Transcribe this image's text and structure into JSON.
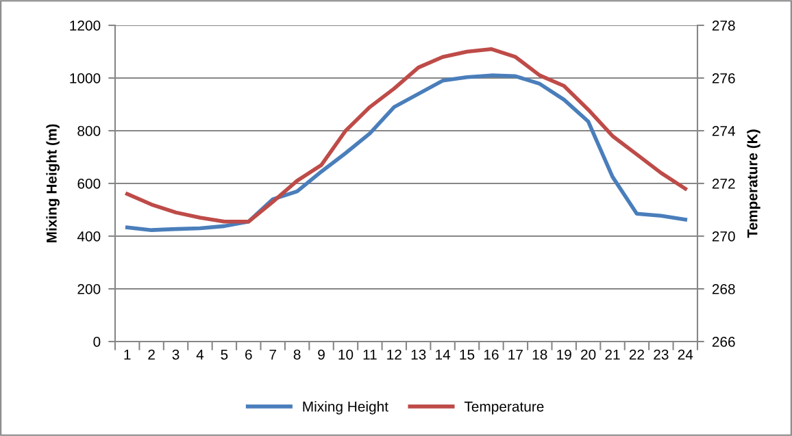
{
  "chart_data": {
    "type": "line",
    "ylabel": "Mixing Height (m)",
    "y2label": "Temperature (K)",
    "categories": [
      "1",
      "2",
      "3",
      "4",
      "5",
      "6",
      "7",
      "8",
      "9",
      "10",
      "11",
      "12",
      "13",
      "14",
      "15",
      "16",
      "17",
      "18",
      "19",
      "20",
      "21",
      "22",
      "23",
      "24"
    ],
    "series": [
      {
        "name": "Mixing Height",
        "color": "#4a7ebb",
        "values": [
          433,
          423,
          427,
          430,
          438,
          455,
          540,
          570,
          645,
          715,
          790,
          890,
          940,
          990,
          1003,
          1010,
          1007,
          978,
          918,
          835,
          625,
          485,
          477,
          463
        ]
      },
      {
        "name": "Temperature",
        "color": "#be4b48",
        "axis": "y2",
        "values": [
          271.6,
          271.2,
          270.9,
          270.7,
          270.55,
          270.55,
          271.3,
          272.1,
          272.7,
          274.0,
          274.9,
          275.6,
          276.4,
          276.8,
          277.0,
          277.1,
          276.8,
          276.1,
          275.7,
          274.8,
          273.8,
          273.1,
          272.4,
          271.8
        ]
      }
    ],
    "ylim": [
      0,
      1200
    ],
    "yticks": [
      0,
      200,
      400,
      600,
      800,
      1000,
      1200
    ],
    "y2lim": [
      266,
      278
    ],
    "y2ticks": [
      266,
      268,
      270,
      272,
      274,
      276,
      278
    ],
    "grid": "y",
    "legend": "bottom",
    "marker": "none",
    "line_style": "solid"
  }
}
